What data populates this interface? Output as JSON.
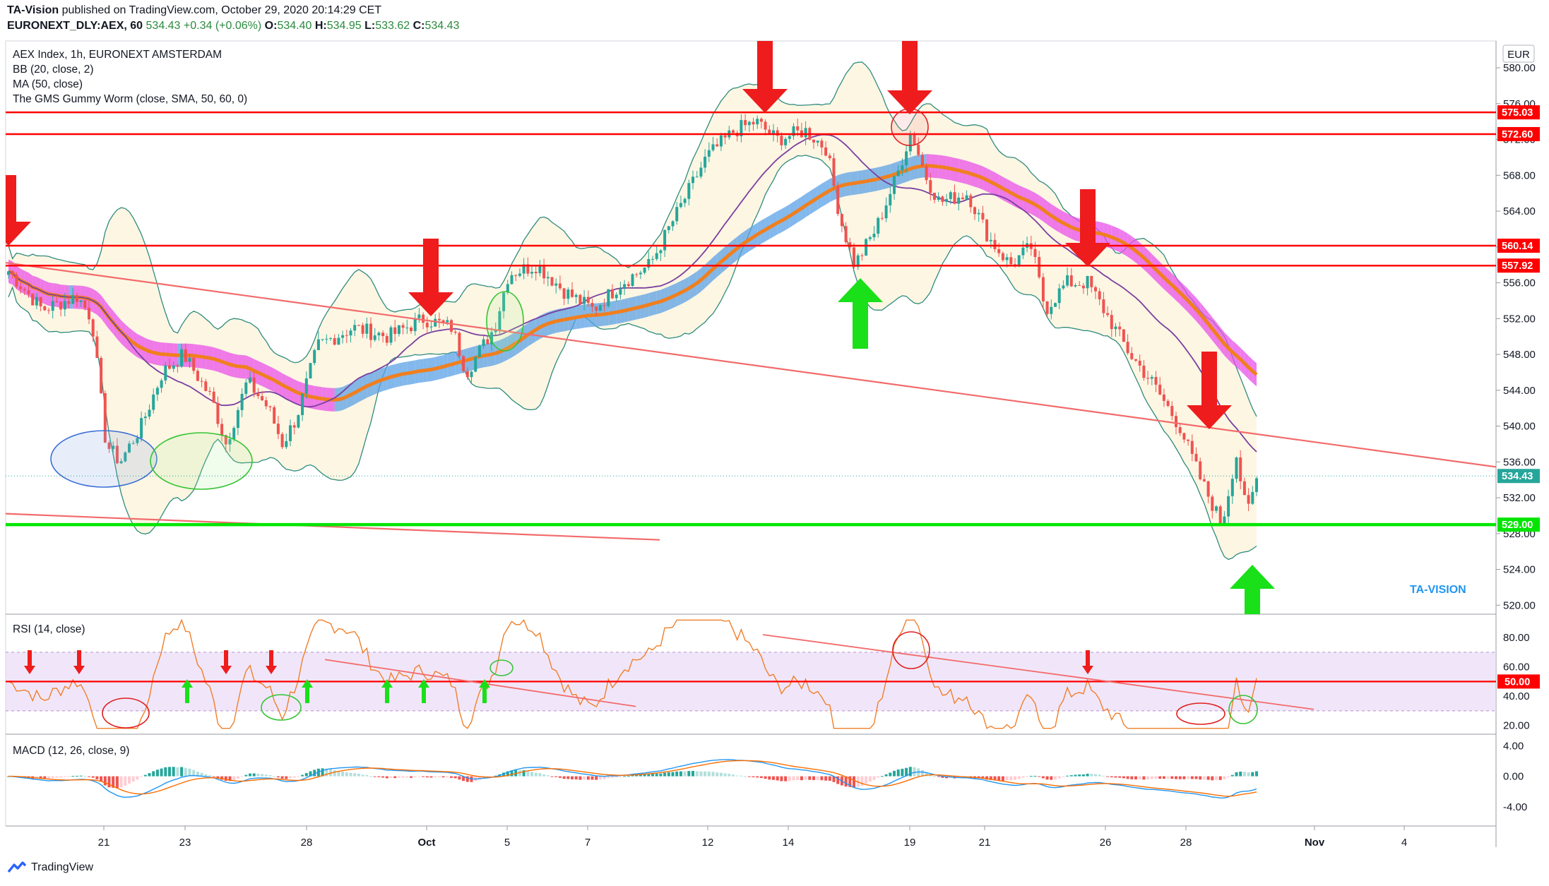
{
  "header": {
    "publisher": "TA-Vision",
    "published_text": " published on TradingView.com, October 29, 2020 20:14:29 CET",
    "symbol": "EURONEXT_DLY:AEX, 60",
    "last": "534.43",
    "change": "+0.34 (+0.06%)",
    "o_label": "O:",
    "o_value": "534.40",
    "h_label": "H:",
    "h_value": "534.95",
    "l_label": "L:",
    "l_value": "533.62",
    "c_label": "C:",
    "c_value": "534.43"
  },
  "legend": {
    "title": "AEX Index, 1h, EURONEXT AMSTERDAM",
    "bb": "BB (20, close, 2)",
    "ma": "MA (50, close)",
    "worm": "The GMS Gummy Worm (close, SMA, 50, 60, 0)"
  },
  "currency": "EUR",
  "watermark": "TA-VISION",
  "footer": {
    "brand": "TradingView"
  },
  "colors": {
    "candle_up": "#26a69a",
    "candle_down": "#ef5350",
    "resistance": "#ff0000",
    "support": "#00e600",
    "trendline": "#f26b6b",
    "bb_line": "#2e8b7e",
    "bb_fill": "#fdf6e3",
    "ma": "#7b3fa0",
    "worm_up": "#5aa0e6",
    "worm_down": "#e84fe8",
    "worm_core": "#f07f1f",
    "rsi": "#f07f2a",
    "macd": "#2196f3",
    "signal": "#ff6d00"
  },
  "chart_data": [
    {
      "type": "candlestick",
      "title": "AEX Index, 1h, EURONEXT AMSTERDAM",
      "ylim": [
        519,
        583
      ],
      "y_ticks": [
        "520.00",
        "524.00",
        "528.00",
        "532.00",
        "536.00",
        "540.00",
        "544.00",
        "548.00",
        "552.00",
        "556.00",
        "560.00",
        "564.00",
        "568.00",
        "572.00",
        "576.00",
        "580.00"
      ],
      "x_ticks": [
        "21",
        "23",
        "28",
        "Oct",
        "5",
        "7",
        "12",
        "14",
        "19",
        "21",
        "26",
        "28",
        "Nov",
        "4"
      ],
      "horizontal_levels": [
        {
          "value": 575.03,
          "label": "575.03",
          "kind": "resistance"
        },
        {
          "value": 572.6,
          "label": "572.60",
          "kind": "resistance"
        },
        {
          "value": 560.14,
          "label": "560.14",
          "kind": "resistance"
        },
        {
          "value": 557.92,
          "label": "557.92",
          "kind": "resistance"
        },
        {
          "value": 529.0,
          "label": "529.00",
          "kind": "support"
        }
      ],
      "last_price": {
        "value": 534.43,
        "label": "534.43"
      },
      "trendlines": [
        {
          "from_date": "Sep 17",
          "from_value": 559.2,
          "to_date": "Nov 7",
          "to_value": 535.0
        },
        {
          "from_date": "Sep 17",
          "from_value": 530.5,
          "to_date": "Oct 10",
          "to_value": 527.3
        }
      ],
      "series": [
        {
          "name": "BB (20, close, 2)",
          "role": "bollinger"
        },
        {
          "name": "MA (50, close)",
          "role": "moving-average"
        },
        {
          "name": "The GMS Gummy Worm (close, SMA, 50, 60, 0)",
          "role": "gummy-worm"
        }
      ]
    },
    {
      "type": "line",
      "title": "RSI (14, close)",
      "ylim": [
        14,
        96
      ],
      "y_ticks": [
        "20.00",
        "40.00",
        "60.00",
        "80.00"
      ],
      "level": {
        "value": 50,
        "label": "50.00"
      },
      "band": [
        30,
        70
      ]
    },
    {
      "type": "bar",
      "title": "MACD (12, 26, close, 9)",
      "ylim": [
        -6.5,
        5.5
      ],
      "y_ticks": [
        "4.00",
        "0.00",
        "-4.00"
      ]
    }
  ]
}
